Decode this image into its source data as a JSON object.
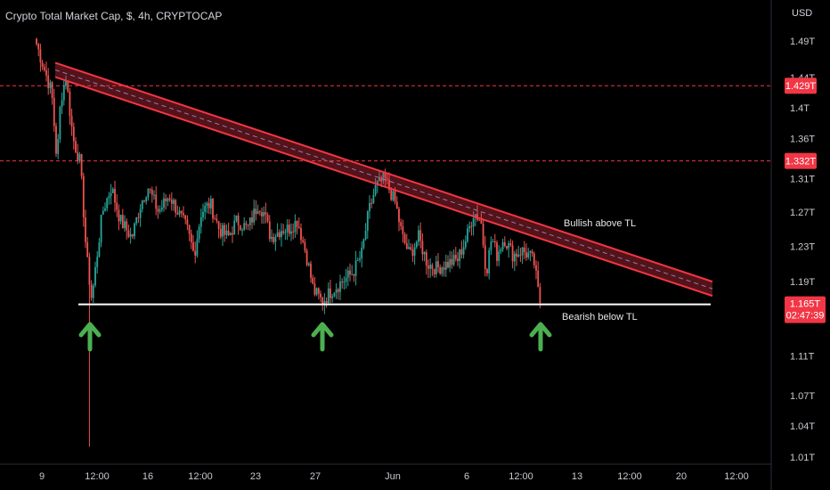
{
  "header": {
    "title": "Crypto Total Market Cap, $, 4h, CRYPTOCAP",
    "currency": "USD"
  },
  "colors": {
    "background": "#000000",
    "bull": "#26a69a",
    "bear": "#ef5350",
    "trendline": "#f23645",
    "support": "#ffffff",
    "arrow": "#4caf50",
    "level_line": "#f23645",
    "label_bg": "#f23645"
  },
  "chart_data": {
    "type": "candlestick",
    "timeframe": "4h",
    "y_scale": "log",
    "ylim": [
      "1.00T",
      "1.50T"
    ],
    "y_ticks": [
      "1.01T",
      "1.04T",
      "1.07T",
      "1.11T",
      "1.15T",
      "1.19T",
      "1.23T",
      "1.27T",
      "1.31T",
      "1.36T",
      "1.4T",
      "1.44T",
      "1.49T"
    ],
    "x_ticks": [
      "9",
      "12:00",
      "16",
      "12:00",
      "23",
      "27",
      "Jun",
      "6",
      "12:00",
      "13",
      "12:00",
      "20",
      "12:00"
    ],
    "price_levels": [
      {
        "label": "1.429T",
        "value": 1.429,
        "style": "dashed"
      },
      {
        "label": "1.332T",
        "value": 1.332,
        "style": "dashed"
      }
    ],
    "last_price": {
      "label": "1.165T",
      "value": 1.165,
      "countdown": "02:47:39"
    },
    "trendline_upper": {
      "start": {
        "date": "May 9",
        "value": 1.46
      },
      "end": {
        "date": "Jun 21",
        "value": 1.19
      }
    },
    "support_line": {
      "value": 1.165,
      "start": "May 9",
      "end": "Jun 21"
    },
    "annotations": [
      "Bullish above TL",
      "Bearish below TL"
    ],
    "arrows": 3
  }
}
